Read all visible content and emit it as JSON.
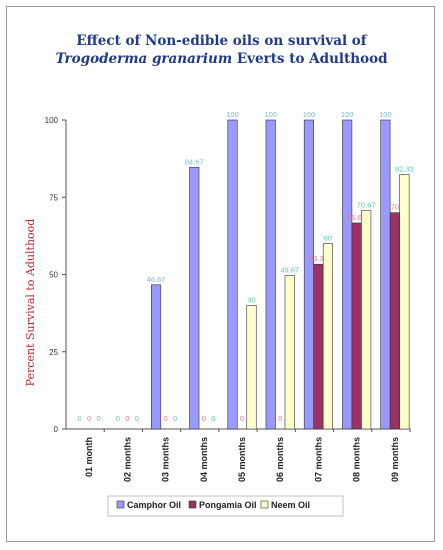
{
  "chart_data": {
    "type": "bar",
    "title_line1": "Effect of Non-edible oils on survival of",
    "title_line2_italic": "Trogoderma granarium",
    "title_line2_rest": " Everts to Adulthood",
    "ylabel": "Percent Survival to Adulthood",
    "ylim": [
      0,
      100
    ],
    "yticks": [
      "0",
      "25",
      "50",
      "75",
      "100"
    ],
    "categories": [
      "01 month",
      "02 months",
      "03 months",
      "04 months",
      "05 months",
      "06 months",
      "07 months",
      "08 months",
      "09 months"
    ],
    "series": [
      {
        "name": "Camphor Oil",
        "color": "#9999ff",
        "label_color": "#7fb8c8",
        "values": [
          0,
          0,
          46.67,
          84.67,
          100,
          100,
          100,
          100,
          100
        ],
        "labels": [
          "0",
          "0",
          "46.67",
          "84.67",
          "100",
          "100",
          "100",
          "100",
          "100"
        ]
      },
      {
        "name": "Pongamia Oil",
        "color": "#993366",
        "label_color": "#e08090",
        "values": [
          0,
          0,
          0,
          0,
          0,
          0,
          53.33,
          66.67,
          70
        ],
        "labels": [
          "0",
          "0",
          "0",
          "0",
          "0",
          "0",
          "53.33",
          "66.67",
          "70"
        ]
      },
      {
        "name": "Neem Oil",
        "color": "#ffffcc",
        "label_color": "#5cc8b0",
        "values": [
          0,
          0,
          0,
          0,
          40,
          49.67,
          60,
          70.67,
          82.33
        ],
        "labels": [
          "0",
          "0",
          "0",
          "0",
          "40",
          "49.67",
          "60",
          "70.67",
          "82.33"
        ]
      }
    ],
    "legend_position": "bottom",
    "grid": false
  }
}
